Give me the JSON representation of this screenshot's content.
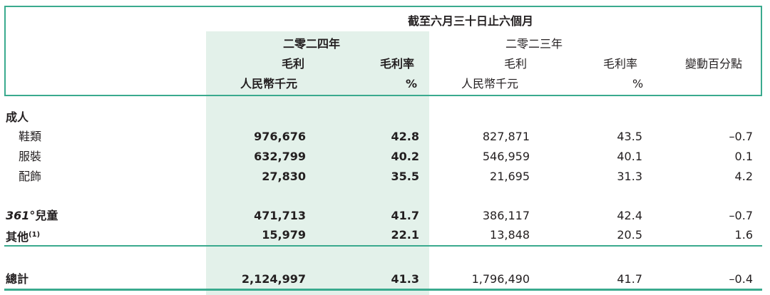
{
  "header": {
    "period": "截至六月三十日止六個月",
    "year_2024": "二零二四年",
    "year_2023": "二零二三年",
    "col_gross_profit": "毛利",
    "col_margin": "毛利率",
    "col_change": "變動百分點",
    "unit_rmb": "人民幣千元",
    "unit_pct": "%"
  },
  "rows": [
    {
      "label": "成人",
      "group": true
    },
    {
      "label": "鞋類",
      "gp2024": "976,676",
      "m2024": "42.8",
      "gp2023": "827,871",
      "m2023": "43.5",
      "chg": "–0.7"
    },
    {
      "label": "服裝",
      "gp2024": "632,799",
      "m2024": "40.2",
      "gp2023": "546,959",
      "m2023": "40.1",
      "chg": "0.1"
    },
    {
      "label": "配飾",
      "gp2024": "27,830",
      "m2024": "35.5",
      "gp2023": "21,695",
      "m2023": "31.3",
      "chg": "4.2"
    },
    {
      "label_italic": "361°",
      "label": "兒童",
      "gp2024": "471,713",
      "m2024": "41.7",
      "gp2023": "386,117",
      "m2023": "42.4",
      "chg": "–0.7"
    },
    {
      "label": "其他",
      "note": "(1)",
      "gp2024": "15,979",
      "m2024": "22.1",
      "gp2023": "13,848",
      "m2023": "20.5",
      "chg": "1.6"
    }
  ],
  "total": {
    "label": "總計",
    "gp2024": "2,124,997",
    "m2024": "41.3",
    "gp2023": "1,796,490",
    "m2023": "41.7",
    "chg": "–0.4"
  }
}
